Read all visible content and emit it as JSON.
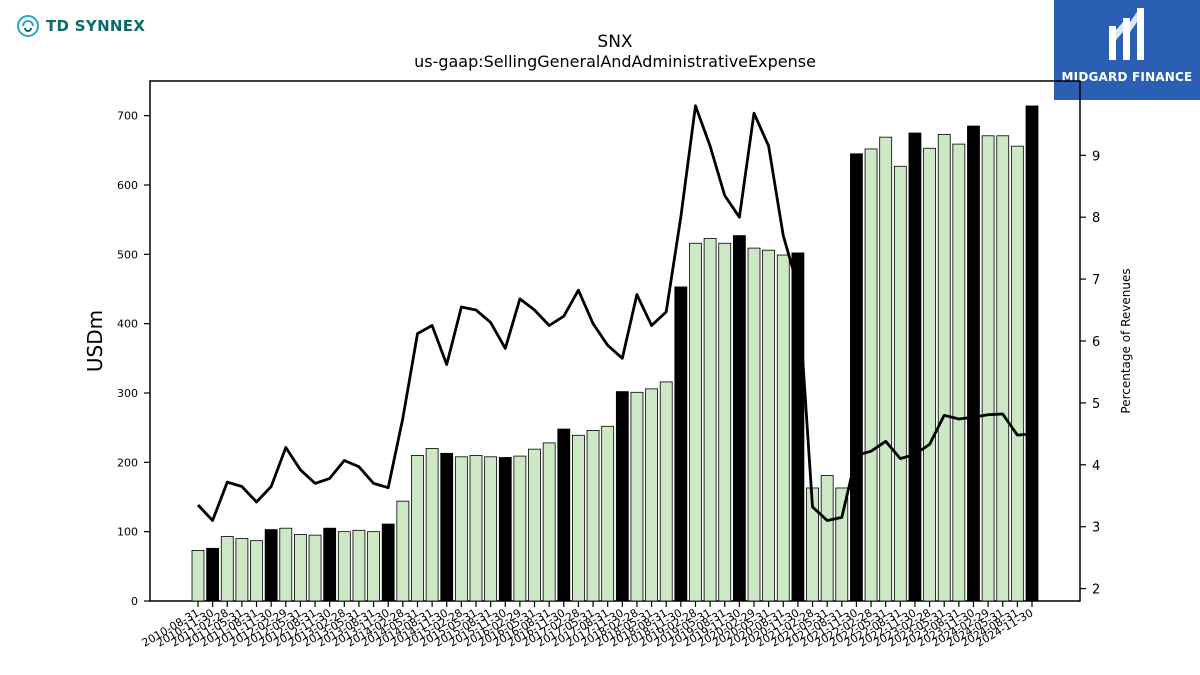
{
  "header": {
    "left_brand": "TD SYNNEX",
    "left_logo_icon": "td-synnex-swirl-icon",
    "right_brand": "MIDGARD FINANCE",
    "right_logo_icon": "midgard-m-icon",
    "right_brand_bg": "#2b5fb4"
  },
  "chart_data": {
    "type": "bar",
    "title": "SNX",
    "subtitle": "us-gaap:SellingGeneralAndAdministrativeExpense",
    "ylabel": "USDm",
    "y2label": "Percentage of Revenues",
    "ylim": [
      0,
      750
    ],
    "y2lim": [
      1.8,
      10.2
    ],
    "yticks": [
      0,
      100,
      200,
      300,
      400,
      500,
      600,
      700
    ],
    "y2ticks": [
      2,
      3,
      4,
      5,
      6,
      7,
      8,
      9
    ],
    "grid": false,
    "colors": {
      "bar": "#cde8c5",
      "bar_highlight": "#000000",
      "line": "#000000"
    },
    "categories": [
      "2010-08-31",
      "2010-11-30",
      "2011-02-28",
      "2011-05-31",
      "2011-08-31",
      "2011-11-30",
      "2012-02-29",
      "2012-05-31",
      "2012-08-31",
      "2012-11-30",
      "2013-02-28",
      "2013-05-31",
      "2013-08-31",
      "2013-11-30",
      "2014-02-28",
      "2014-05-31",
      "2014-08-31",
      "2014-11-30",
      "2015-02-28",
      "2015-05-31",
      "2015-08-31",
      "2015-11-30",
      "2016-02-29",
      "2016-05-31",
      "2016-08-31",
      "2016-11-30",
      "2017-02-28",
      "2017-05-31",
      "2017-08-31",
      "2017-11-30",
      "2018-02-28",
      "2018-05-31",
      "2018-08-31",
      "2018-11-30",
      "2019-02-28",
      "2019-05-31",
      "2019-08-31",
      "2019-11-30",
      "2020-02-29",
      "2020-05-31",
      "2020-08-31",
      "2020-11-30",
      "2021-02-28",
      "2021-05-31",
      "2021-08-31",
      "2021-11-30",
      "2022-02-28",
      "2022-05-31",
      "2022-08-31",
      "2022-11-30",
      "2023-02-28",
      "2023-05-31",
      "2023-08-31",
      "2023-11-30",
      "2024-02-29",
      "2024-05-31",
      "2024-08-31",
      "2024-11-30"
    ],
    "values": [
      73,
      76,
      93,
      90,
      87,
      103,
      105,
      96,
      95,
      105,
      100,
      102,
      100,
      111,
      144,
      210,
      220,
      213,
      208,
      210,
      208,
      207,
      209,
      219,
      228,
      248,
      239,
      246,
      252,
      302,
      301,
      306,
      316,
      453,
      516,
      523,
      516,
      527,
      509,
      506,
      499,
      502,
      163,
      181,
      163,
      645,
      652,
      669,
      627,
      675,
      653,
      673,
      659,
      685,
      671,
      671,
      656,
      714
    ],
    "highlight": [
      false,
      true,
      false,
      false,
      false,
      true,
      false,
      false,
      false,
      true,
      false,
      false,
      false,
      true,
      false,
      false,
      false,
      true,
      false,
      false,
      false,
      true,
      false,
      false,
      false,
      true,
      false,
      false,
      false,
      true,
      false,
      false,
      false,
      true,
      false,
      false,
      false,
      true,
      false,
      false,
      false,
      true,
      false,
      false,
      false,
      true,
      false,
      false,
      false,
      true,
      false,
      false,
      false,
      true,
      false,
      false,
      false,
      true
    ],
    "series": [
      {
        "name": "Percentage of Revenues",
        "axis": "right",
        "type": "line",
        "values": [
          3.35,
          3.1,
          3.72,
          3.65,
          3.4,
          3.65,
          4.28,
          3.92,
          3.7,
          3.78,
          4.07,
          3.97,
          3.7,
          3.63,
          4.75,
          6.12,
          6.25,
          5.62,
          6.55,
          6.5,
          6.3,
          5.88,
          6.68,
          6.5,
          6.25,
          6.4,
          6.82,
          6.28,
          5.93,
          5.72,
          6.75,
          6.25,
          6.47,
          8.0,
          9.8,
          9.15,
          8.35,
          8.0,
          9.68,
          9.15,
          7.7,
          6.88,
          3.32,
          3.1,
          3.15,
          4.15,
          4.22,
          4.38,
          4.1,
          4.17,
          4.33,
          4.8,
          4.74,
          4.77,
          4.81,
          4.82,
          4.48,
          4.5
        ]
      }
    ]
  }
}
